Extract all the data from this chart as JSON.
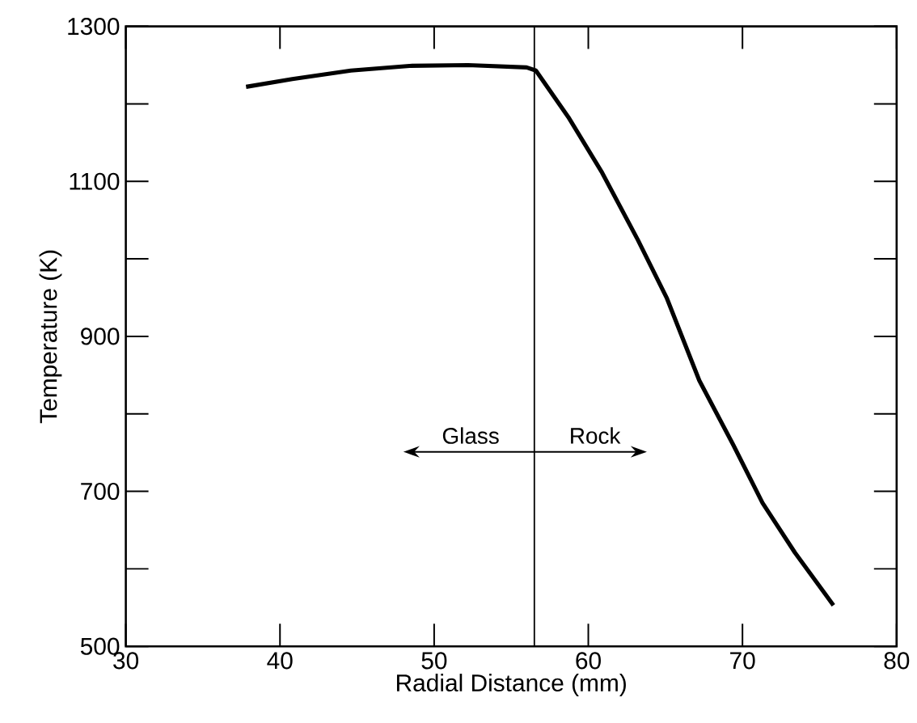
{
  "chart_data": {
    "type": "line",
    "xlabel": "Radial Distance (mm)",
    "ylabel": "Temperature (K)",
    "x": [
      37.8,
      40.8,
      44.6,
      48.4,
      52.2,
      56.0,
      56.6,
      58.7,
      60.9,
      63.2,
      65.1,
      67.2,
      69.4,
      71.3,
      73.4,
      75.9
    ],
    "series": [
      {
        "color": "#000000",
        "values": [
          1222,
          1232,
          1243,
          1249,
          1250,
          1247,
          1243,
          1183,
          1111,
          1025,
          949,
          843,
          760,
          685,
          621,
          553
        ]
      }
    ],
    "xlim": [
      30,
      80
    ],
    "ylim": [
      500,
      1300
    ],
    "xticks": [
      30,
      40,
      50,
      60,
      70,
      80
    ],
    "yticks": [
      500,
      {
        "value": 600,
        "label": null
      },
      700,
      {
        "value": 800,
        "label": null
      },
      900,
      {
        "value": 1000,
        "label": null
      },
      1100,
      {
        "value": 1200,
        "label": null
      },
      1300
    ],
    "ref_lines": [
      {
        "axis": "x",
        "value": 56.5,
        "color": "#000000"
      }
    ],
    "annotations": [
      "Glass",
      "Rock"
    ],
    "grid": false,
    "marker": "none",
    "line_style": "solid"
  }
}
